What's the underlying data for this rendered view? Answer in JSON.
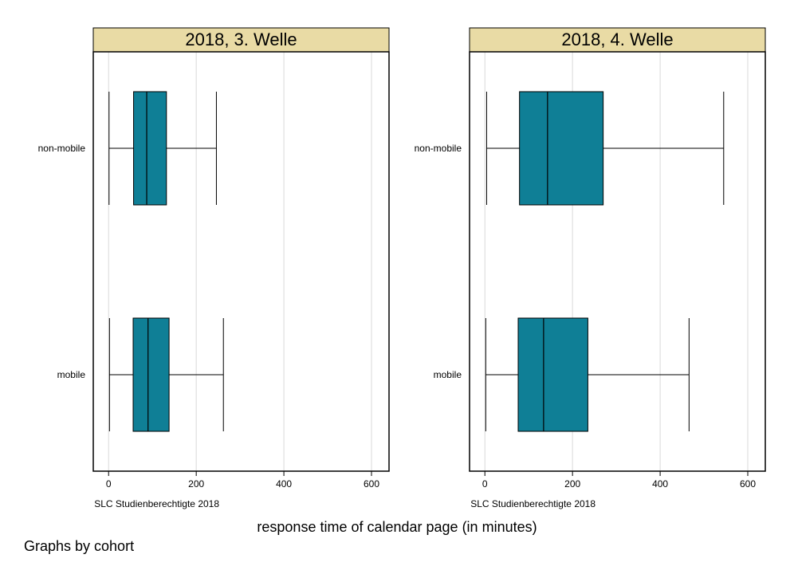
{
  "chart_data": {
    "type": "boxplot",
    "orientation": "horizontal",
    "xlabel": "response time of calendar page (in minutes)",
    "xlim": [
      -35,
      640
    ],
    "xticks": [
      0,
      200,
      400,
      600
    ],
    "grid": true,
    "categories": [
      "non-mobile",
      "mobile"
    ],
    "footer": "Graphs by cohort",
    "colors": {
      "box_fill": "#0f7f96",
      "strip_fill": "#e9dba5",
      "grid": "#d9d9d9",
      "line": "#000000"
    },
    "panels": [
      {
        "title": "2018, 3. Welle",
        "note": "SLC Studienberechtigte 2018",
        "boxes": [
          {
            "category": "non-mobile",
            "whisker_low": 1,
            "q1": 57,
            "median": 87,
            "q3": 132,
            "whisker_high": 246
          },
          {
            "category": "mobile",
            "whisker_low": 2,
            "q1": 56,
            "median": 90,
            "q3": 138,
            "whisker_high": 262
          }
        ]
      },
      {
        "title": "2018, 4. Welle",
        "note": "SLC Studienberechtigte 2018",
        "boxes": [
          {
            "category": "non-mobile",
            "whisker_low": 4,
            "q1": 79,
            "median": 143,
            "q3": 270,
            "whisker_high": 545
          },
          {
            "category": "mobile",
            "whisker_low": 2,
            "q1": 76,
            "median": 134,
            "q3": 235,
            "whisker_high": 466
          }
        ]
      }
    ]
  }
}
